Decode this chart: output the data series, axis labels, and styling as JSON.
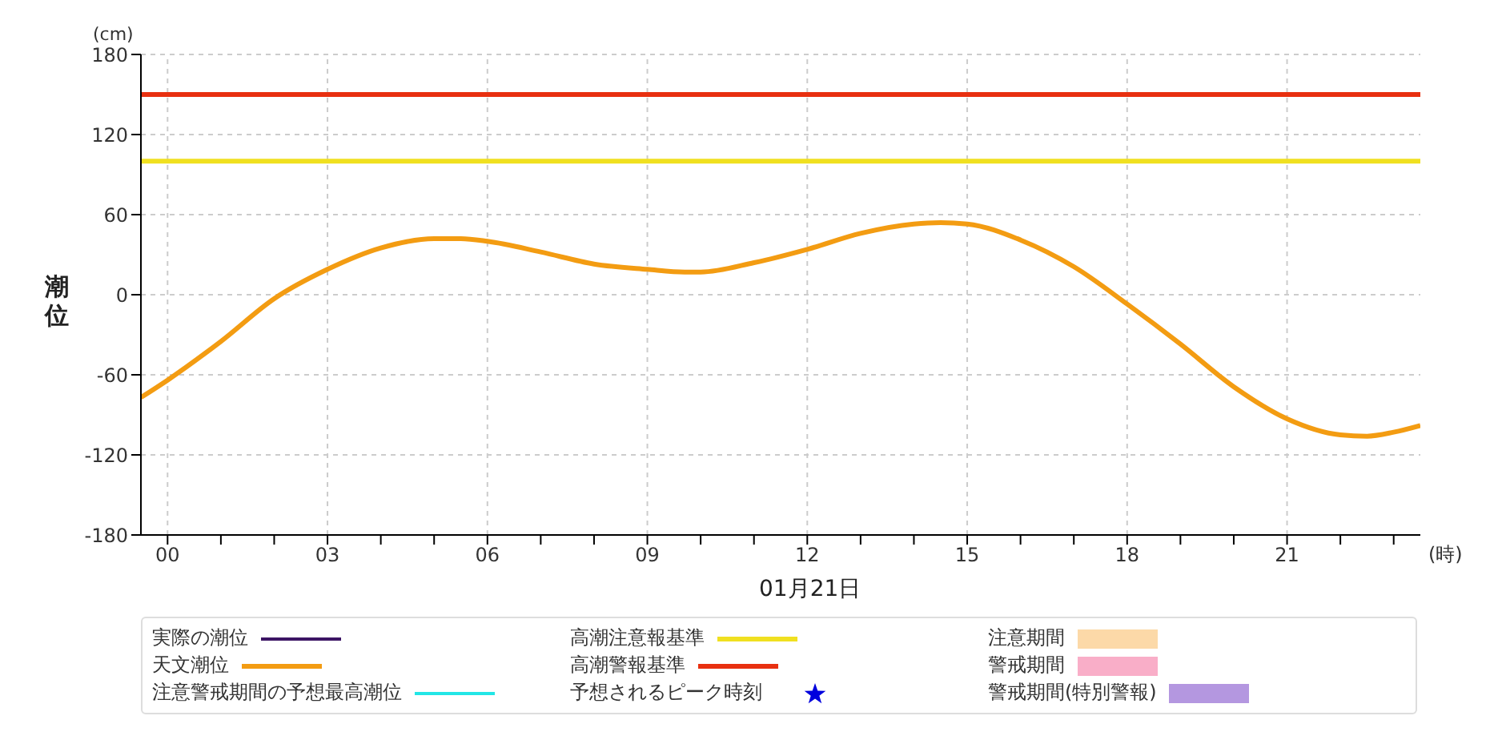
{
  "chart_data": {
    "type": "line",
    "ylabel": "潮位",
    "xlabel": "01月21日",
    "annotations": [
      "(cm)",
      "(時)"
    ],
    "xlim": [
      -0.5,
      23.5
    ],
    "xticks": [
      {
        "value": 0,
        "label": "00"
      },
      {
        "value": 1,
        "label": null
      },
      {
        "value": 2,
        "label": null
      },
      {
        "value": 3,
        "label": "03"
      },
      {
        "value": 4,
        "label": null
      },
      {
        "value": 5,
        "label": null
      },
      {
        "value": 6,
        "label": "06"
      },
      {
        "value": 7,
        "label": null
      },
      {
        "value": 8,
        "label": null
      },
      {
        "value": 9,
        "label": "09"
      },
      {
        "value": 10,
        "label": null
      },
      {
        "value": 11,
        "label": null
      },
      {
        "value": 12,
        "label": "12"
      },
      {
        "value": 13,
        "label": null
      },
      {
        "value": 14,
        "label": null
      },
      {
        "value": 15,
        "label": "15"
      },
      {
        "value": 16,
        "label": null
      },
      {
        "value": 17,
        "label": null
      },
      {
        "value": 18,
        "label": "18"
      },
      {
        "value": 19,
        "label": null
      },
      {
        "value": 20,
        "label": null
      },
      {
        "value": 21,
        "label": "21"
      },
      {
        "value": 22,
        "label": null
      },
      {
        "value": 23,
        "label": null
      }
    ],
    "ylim": [
      -180,
      180
    ],
    "yticks": [
      -180,
      -120,
      -60,
      0,
      60,
      120,
      180
    ],
    "grid": true,
    "legend": "bottom",
    "marker": "none",
    "line_style": "solid",
    "series": [
      {
        "name": "実際の潮位",
        "color": "#3c1464"
      },
      {
        "name": "天文潮位",
        "color": "#f39c12",
        "x": [
          -0.5,
          0,
          1,
          2,
          3,
          4,
          5,
          5.5,
          6,
          7,
          8,
          9,
          9.7,
          10,
          11,
          12,
          13,
          14,
          14.5,
          15,
          16,
          17,
          18,
          19,
          20,
          21,
          22,
          22.5,
          23,
          23.5
        ],
        "values": [
          -77,
          -64,
          -35,
          -3,
          19,
          35,
          42,
          42,
          40,
          32,
          23,
          19,
          17,
          17,
          24,
          34,
          46,
          53,
          54,
          53,
          41,
          21,
          -7,
          -37,
          -69,
          -93,
          -105,
          -106,
          -103,
          -98
        ]
      },
      {
        "name": "注意警戒期間の予想最高潮位",
        "color": "#22e6e6"
      },
      {
        "name": "高潮注意報基準",
        "color": "#f0e020",
        "x": [
          -0.5,
          23.5
        ],
        "values": [
          100,
          100
        ]
      },
      {
        "name": "高潮警報基準",
        "color": "#e83010",
        "x": [
          -0.5,
          23.5
        ],
        "values": [
          150,
          150
        ]
      },
      {
        "name": "予想されるピーク時刻",
        "type": "scatter",
        "marker": "star",
        "color": "#0000dd"
      },
      {
        "name": "注意期間",
        "type": "area",
        "color": "#fcd9a8"
      },
      {
        "name": "警戒期間",
        "type": "area",
        "color": "#f9aec8"
      },
      {
        "name": "警戒期間(特別警報)",
        "type": "area",
        "color": "#b497e0"
      }
    ]
  }
}
